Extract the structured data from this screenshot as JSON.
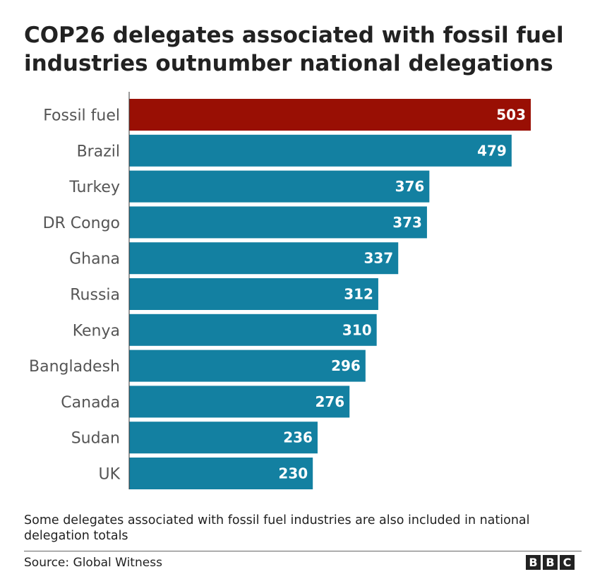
{
  "chart_data": {
    "type": "bar",
    "orientation": "horizontal",
    "title": "COP26 delegates associated with fossil fuel industries outnumber national delegations",
    "categories": [
      "Fossil fuel",
      "Brazil",
      "Turkey",
      "DR Congo",
      "Ghana",
      "Russia",
      "Kenya",
      "Bangladesh",
      "Canada",
      "Sudan",
      "UK"
    ],
    "values": [
      503,
      479,
      376,
      373,
      337,
      312,
      310,
      296,
      276,
      236,
      230
    ],
    "value_labels": [
      "503",
      "479",
      "376",
      "373",
      "337",
      "312",
      "310",
      "296",
      "276",
      "236",
      "230"
    ],
    "xlim": [
      0,
      503
    ],
    "grid": false,
    "legend": "none",
    "colors": {
      "highlight": "#990f04",
      "default": "#1380a1"
    },
    "highlight_categories": [
      "Fossil fuel"
    ],
    "note": "Some delegates associated with fossil fuel industries are also included in national delegation totals",
    "source": "Source: Global Witness"
  },
  "branding": {
    "logo": [
      "B",
      "B",
      "C"
    ]
  }
}
